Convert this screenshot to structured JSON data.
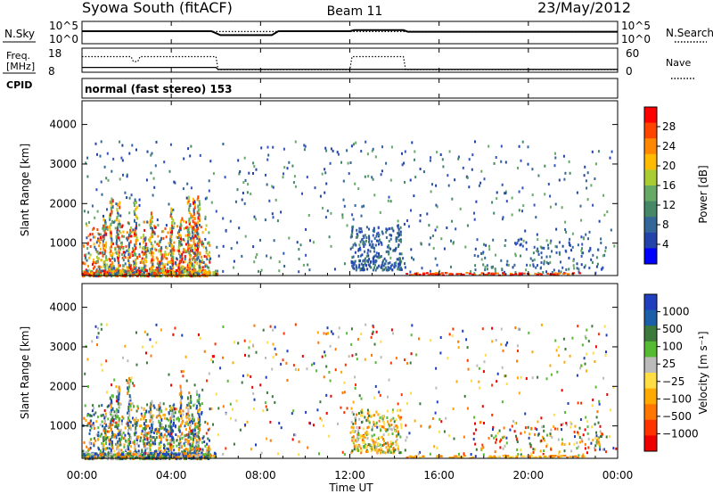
{
  "header": {
    "title": "Syowa South (fitACF)",
    "beam": "Beam 11",
    "date": "23/May/2012"
  },
  "colors": {
    "power_scale": [
      "#ff0000",
      "#ff4400",
      "#ff8800",
      "#ffbb00",
      "#aacc33",
      "#66aa66",
      "#448866",
      "#336699",
      "#2244aa",
      "#0000ff"
    ],
    "velocity_scale": [
      "#1f3fbf",
      "#1a5fa8",
      "#3b7a3b",
      "#55bb33",
      "#bbbbbb",
      "#ffdd44",
      "#ffaa00",
      "#ff7700",
      "#ff3300",
      "#ee0000"
    ]
  },
  "chart_data": [
    {
      "type": "line",
      "name": "noise-panel",
      "left_label": "N.Sky",
      "right_label": "N.Search",
      "left_ticks": [
        "10^5",
        "10^0"
      ],
      "right_ticks": [
        "10^5",
        "10^0"
      ],
      "series": [
        {
          "name": "N.Sky",
          "style": "solid",
          "x": [
            0,
            5.8,
            6.2,
            8.5,
            8.8,
            12.0,
            12.2,
            14.4,
            14.6,
            24
          ],
          "values": [
            1000,
            1000,
            80,
            80,
            1000,
            1000,
            2000,
            2000,
            700,
            700
          ]
        },
        {
          "name": "N.Search",
          "style": "dotted",
          "x": [
            0,
            24
          ],
          "values": [
            800,
            800
          ]
        }
      ]
    },
    {
      "type": "line",
      "name": "freq-nave-panel",
      "left_label_1": "Freq.",
      "left_label_2": "[MHz]",
      "left_label_3": "CPID",
      "right_label": "Nave",
      "left_ticks": [
        "18",
        "8"
      ],
      "right_ticks": [
        "60",
        "0"
      ],
      "cpid_text": "normal (fast stereo) 153",
      "series": [
        {
          "name": "Freq.",
          "style": "solid",
          "x": [
            0,
            6.0,
            6.1,
            24
          ],
          "values": [
            10,
            10,
            9,
            9
          ]
        },
        {
          "name": "Nave",
          "style": "dotted",
          "x": [
            0,
            2.2,
            2.3,
            2.5,
            2.6,
            6.0,
            6.1,
            12.0,
            12.1,
            14.4,
            14.5,
            24
          ],
          "values": [
            45,
            45,
            30,
            30,
            45,
            45,
            5,
            5,
            45,
            45,
            5,
            5
          ]
        }
      ]
    },
    {
      "type": "heatmap",
      "name": "power-panel",
      "ylabel": "Slant Range [km]",
      "yticks": [
        "1000",
        "2000",
        "3000",
        "4000"
      ],
      "ylim": [
        180,
        4600
      ],
      "xlim": [
        0,
        24
      ],
      "colorbar_label": "Power [dB]",
      "colorbar_ticks": [
        "28",
        "24",
        "20",
        "16",
        "12",
        "8",
        "4"
      ],
      "clim": [
        0,
        30
      ]
    },
    {
      "type": "heatmap",
      "name": "velocity-panel",
      "ylabel": "Slant Range [km]",
      "yticks": [
        "1000",
        "2000",
        "3000",
        "4000"
      ],
      "ylim": [
        180,
        4600
      ],
      "xlim": [
        0,
        24
      ],
      "colorbar_label": "Velocity [m s⁻¹]",
      "colorbar_ticks": [
        "1000",
        "500",
        "100",
        "25",
        "−25",
        "−100",
        "−500",
        "−1000"
      ]
    }
  ],
  "xaxis": {
    "label": "Time UT",
    "ticks": [
      "00:00",
      "04:00",
      "08:00",
      "12:00",
      "16:00",
      "20:00",
      "00:00"
    ]
  }
}
